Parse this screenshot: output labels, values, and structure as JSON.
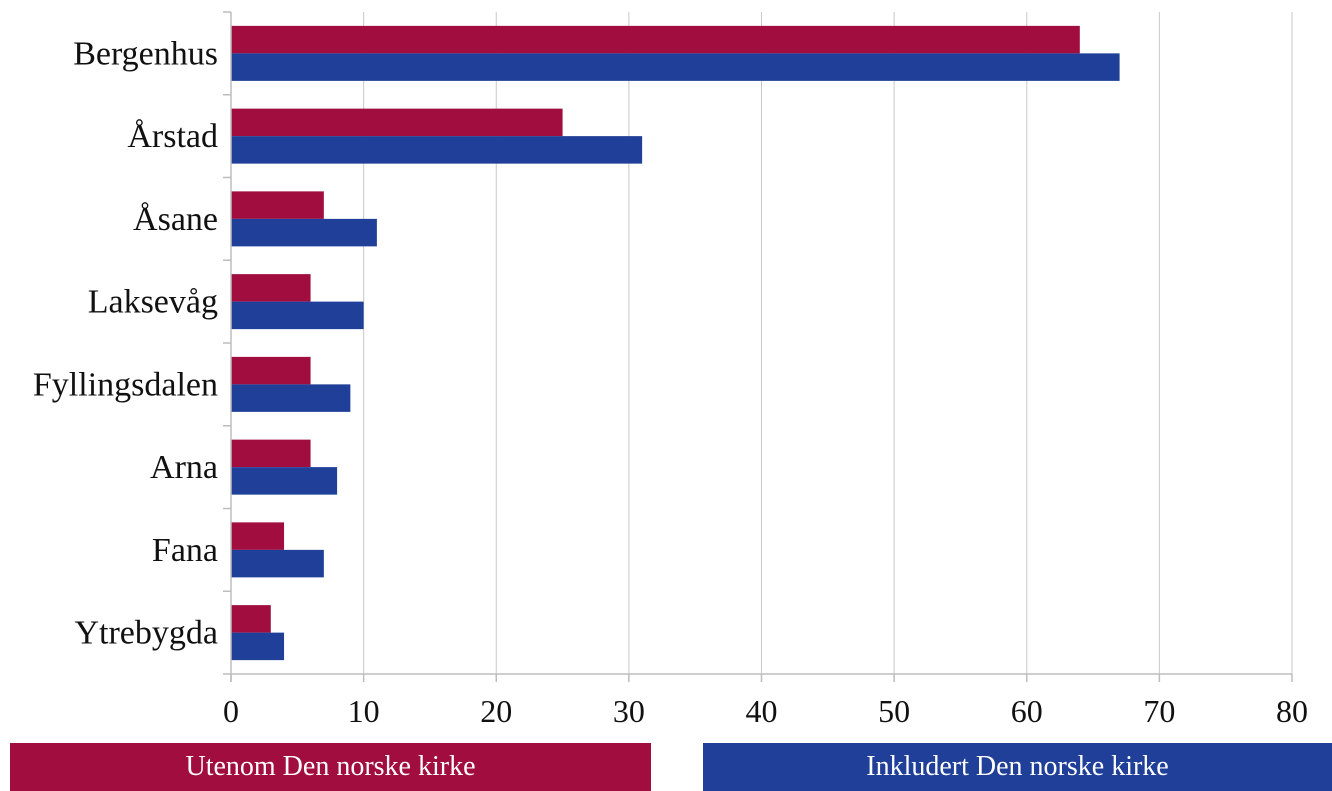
{
  "chart_data": {
    "type": "bar",
    "orientation": "horizontal",
    "categories": [
      "Bergenhus",
      "Årstad",
      "Åsane",
      "Laksevåg",
      "Fyllingsdalen",
      "Arna",
      "Fana",
      "Ytrebygda"
    ],
    "series": [
      {
        "name": "Utenom Den norske kirke",
        "color": "#a10d3e",
        "values": [
          64,
          25,
          7,
          6,
          6,
          6,
          4,
          3
        ]
      },
      {
        "name": "Inkludert Den norske kirke",
        "color": "#1f3f98",
        "values": [
          67,
          31,
          11,
          10,
          9,
          8,
          7,
          4
        ]
      }
    ],
    "xlim": [
      0,
      80
    ],
    "xticks": [
      "0",
      "10",
      "20",
      "30",
      "40",
      "50",
      "60",
      "70",
      "80"
    ],
    "grid": true,
    "legend_position": "bottom"
  }
}
